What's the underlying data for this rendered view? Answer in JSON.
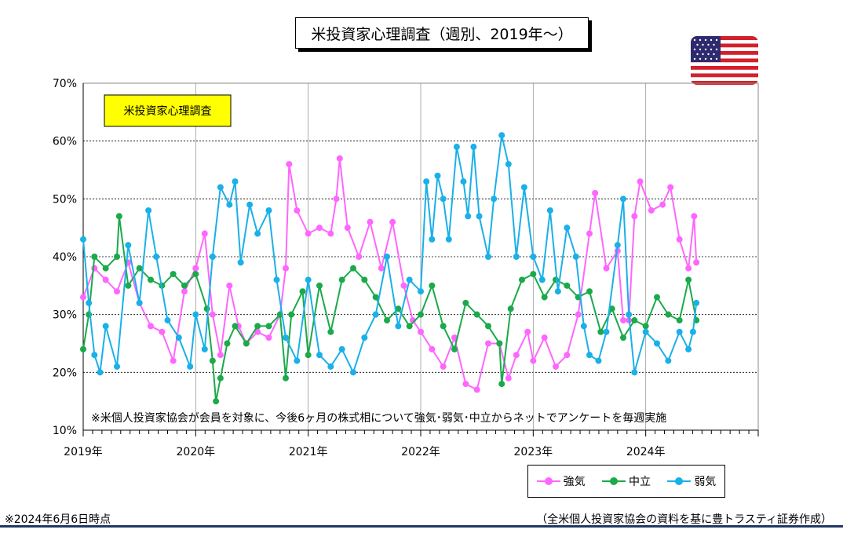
{
  "title": "米投資家心理調査（週別、2019年～）",
  "note_bottom_left": "※2024年6月6日時点",
  "note_bottom_right": "（全米個人投資家協会の資料を基に豊トラスティ証券作成）",
  "flag_icon": "us-flag-icon",
  "colors": {
    "bull": "#ff66ff",
    "neutral": "#1aaa4a",
    "bear": "#1ab0e8",
    "label_bg": "#ffff00",
    "footer_bar": "#1f3864"
  },
  "chart_data": {
    "type": "line",
    "label_box": "米投資家心理調査",
    "annotation": "※米個人投資家協会が会員を対象に、今後6ヶ月の株式相について強気･弱気･中立からネットでアンケートを毎週実施",
    "y_ticks": [
      "10%",
      "20%",
      "30%",
      "40%",
      "50%",
      "60%",
      "70%"
    ],
    "ylim": [
      10,
      70
    ],
    "x_ticks": [
      "2019年",
      "2020年",
      "2021年",
      "2022年",
      "2023年",
      "2024年"
    ],
    "xlim": [
      2019.0,
      2025.0
    ],
    "grid": true,
    "legend_position": "bottom-right",
    "series": [
      {
        "name": "強気",
        "color": "#ff66ff",
        "points": [
          [
            2019.0,
            33
          ],
          [
            2019.1,
            38
          ],
          [
            2019.2,
            36
          ],
          [
            2019.3,
            34
          ],
          [
            2019.4,
            39
          ],
          [
            2019.5,
            32
          ],
          [
            2019.6,
            28
          ],
          [
            2019.7,
            27
          ],
          [
            2019.8,
            22
          ],
          [
            2019.9,
            34
          ],
          [
            2020.0,
            38
          ],
          [
            2020.08,
            44
          ],
          [
            2020.15,
            30
          ],
          [
            2020.22,
            23
          ],
          [
            2020.3,
            35
          ],
          [
            2020.38,
            28
          ],
          [
            2020.45,
            25
          ],
          [
            2020.55,
            27
          ],
          [
            2020.65,
            26
          ],
          [
            2020.75,
            30
          ],
          [
            2020.8,
            38
          ],
          [
            2020.83,
            56
          ],
          [
            2020.9,
            48
          ],
          [
            2021.0,
            44
          ],
          [
            2021.1,
            45
          ],
          [
            2021.2,
            44
          ],
          [
            2021.25,
            50
          ],
          [
            2021.28,
            57
          ],
          [
            2021.35,
            45
          ],
          [
            2021.45,
            40
          ],
          [
            2021.55,
            46
          ],
          [
            2021.65,
            38
          ],
          [
            2021.75,
            46
          ],
          [
            2021.85,
            35
          ],
          [
            2021.93,
            29
          ],
          [
            2022.0,
            27
          ],
          [
            2022.1,
            24
          ],
          [
            2022.2,
            21
          ],
          [
            2022.3,
            26
          ],
          [
            2022.4,
            18
          ],
          [
            2022.5,
            17
          ],
          [
            2022.6,
            25
          ],
          [
            2022.7,
            25
          ],
          [
            2022.78,
            19
          ],
          [
            2022.85,
            23
          ],
          [
            2022.95,
            27
          ],
          [
            2023.0,
            22
          ],
          [
            2023.1,
            26
          ],
          [
            2023.2,
            21
          ],
          [
            2023.3,
            23
          ],
          [
            2023.4,
            30
          ],
          [
            2023.5,
            44
          ],
          [
            2023.55,
            51
          ],
          [
            2023.65,
            38
          ],
          [
            2023.75,
            41
          ],
          [
            2023.8,
            29
          ],
          [
            2023.85,
            29
          ],
          [
            2023.9,
            47
          ],
          [
            2023.95,
            53
          ],
          [
            2024.05,
            48
          ],
          [
            2024.15,
            49
          ],
          [
            2024.22,
            52
          ],
          [
            2024.3,
            43
          ],
          [
            2024.38,
            38
          ],
          [
            2024.43,
            47
          ],
          [
            2024.45,
            39
          ]
        ]
      },
      {
        "name": "中立",
        "color": "#1aaa4a",
        "points": [
          [
            2019.0,
            24
          ],
          [
            2019.05,
            30
          ],
          [
            2019.1,
            40
          ],
          [
            2019.2,
            38
          ],
          [
            2019.3,
            40
          ],
          [
            2019.32,
            47
          ],
          [
            2019.4,
            35
          ],
          [
            2019.5,
            38
          ],
          [
            2019.6,
            36
          ],
          [
            2019.7,
            35
          ],
          [
            2019.8,
            37
          ],
          [
            2019.9,
            35
          ],
          [
            2020.0,
            37
          ],
          [
            2020.1,
            31
          ],
          [
            2020.15,
            22
          ],
          [
            2020.18,
            15
          ],
          [
            2020.22,
            19
          ],
          [
            2020.28,
            25
          ],
          [
            2020.35,
            28
          ],
          [
            2020.45,
            25
          ],
          [
            2020.55,
            28
          ],
          [
            2020.65,
            28
          ],
          [
            2020.75,
            30
          ],
          [
            2020.8,
            19
          ],
          [
            2020.85,
            30
          ],
          [
            2020.95,
            34
          ],
          [
            2021.0,
            23
          ],
          [
            2021.1,
            35
          ],
          [
            2021.2,
            27
          ],
          [
            2021.3,
            36
          ],
          [
            2021.4,
            38
          ],
          [
            2021.5,
            36
          ],
          [
            2021.6,
            33
          ],
          [
            2021.7,
            29
          ],
          [
            2021.8,
            31
          ],
          [
            2021.9,
            28
          ],
          [
            2022.0,
            30
          ],
          [
            2022.1,
            35
          ],
          [
            2022.2,
            28
          ],
          [
            2022.3,
            24
          ],
          [
            2022.4,
            32
          ],
          [
            2022.5,
            30
          ],
          [
            2022.6,
            28
          ],
          [
            2022.7,
            25
          ],
          [
            2022.72,
            18
          ],
          [
            2022.8,
            31
          ],
          [
            2022.9,
            36
          ],
          [
            2023.0,
            37
          ],
          [
            2023.1,
            33
          ],
          [
            2023.2,
            36
          ],
          [
            2023.3,
            35
          ],
          [
            2023.4,
            33
          ],
          [
            2023.5,
            34
          ],
          [
            2023.6,
            27
          ],
          [
            2023.7,
            31
          ],
          [
            2023.8,
            26
          ],
          [
            2023.9,
            29
          ],
          [
            2024.0,
            28
          ],
          [
            2024.1,
            33
          ],
          [
            2024.2,
            30
          ],
          [
            2024.3,
            29
          ],
          [
            2024.38,
            36
          ],
          [
            2024.45,
            29
          ]
        ]
      },
      {
        "name": "弱気",
        "color": "#1ab0e8",
        "points": [
          [
            2019.0,
            43
          ],
          [
            2019.05,
            32
          ],
          [
            2019.1,
            23
          ],
          [
            2019.15,
            20
          ],
          [
            2019.2,
            28
          ],
          [
            2019.3,
            21
          ],
          [
            2019.4,
            42
          ],
          [
            2019.5,
            32
          ],
          [
            2019.58,
            48
          ],
          [
            2019.65,
            40
          ],
          [
            2019.75,
            29
          ],
          [
            2019.85,
            26
          ],
          [
            2019.95,
            21
          ],
          [
            2020.0,
            30
          ],
          [
            2020.08,
            24
          ],
          [
            2020.15,
            40
          ],
          [
            2020.22,
            52
          ],
          [
            2020.3,
            49
          ],
          [
            2020.35,
            53
          ],
          [
            2020.4,
            39
          ],
          [
            2020.48,
            49
          ],
          [
            2020.55,
            44
          ],
          [
            2020.65,
            48
          ],
          [
            2020.72,
            36
          ],
          [
            2020.8,
            26
          ],
          [
            2020.9,
            22
          ],
          [
            2021.0,
            36
          ],
          [
            2021.1,
            23
          ],
          [
            2021.2,
            21
          ],
          [
            2021.3,
            24
          ],
          [
            2021.4,
            20
          ],
          [
            2021.5,
            26
          ],
          [
            2021.6,
            30
          ],
          [
            2021.7,
            40
          ],
          [
            2021.8,
            28
          ],
          [
            2021.9,
            36
          ],
          [
            2022.0,
            34
          ],
          [
            2022.05,
            53
          ],
          [
            2022.1,
            43
          ],
          [
            2022.15,
            54
          ],
          [
            2022.2,
            50
          ],
          [
            2022.25,
            43
          ],
          [
            2022.32,
            59
          ],
          [
            2022.38,
            53
          ],
          [
            2022.42,
            47
          ],
          [
            2022.47,
            59
          ],
          [
            2022.52,
            47
          ],
          [
            2022.6,
            40
          ],
          [
            2022.65,
            50
          ],
          [
            2022.72,
            61
          ],
          [
            2022.78,
            56
          ],
          [
            2022.85,
            40
          ],
          [
            2022.92,
            52
          ],
          [
            2023.0,
            40
          ],
          [
            2023.08,
            36
          ],
          [
            2023.15,
            48
          ],
          [
            2023.22,
            34
          ],
          [
            2023.3,
            45
          ],
          [
            2023.38,
            40
          ],
          [
            2023.45,
            28
          ],
          [
            2023.5,
            23
          ],
          [
            2023.58,
            22
          ],
          [
            2023.65,
            27
          ],
          [
            2023.75,
            42
          ],
          [
            2023.8,
            50
          ],
          [
            2023.85,
            30
          ],
          [
            2023.9,
            20
          ],
          [
            2024.0,
            27
          ],
          [
            2024.1,
            25
          ],
          [
            2024.2,
            22
          ],
          [
            2024.3,
            27
          ],
          [
            2024.38,
            24
          ],
          [
            2024.42,
            27
          ],
          [
            2024.45,
            32
          ]
        ]
      }
    ]
  }
}
